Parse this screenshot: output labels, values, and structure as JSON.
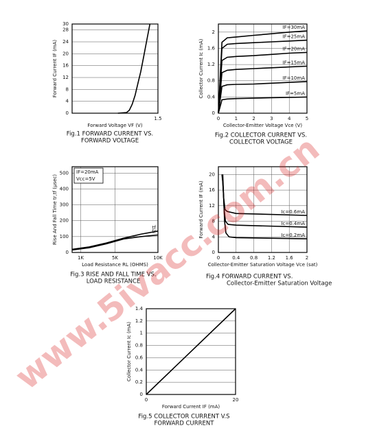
{
  "watermark": "www.5ivacc.com.cn",
  "chart_data": [
    {
      "type": "line",
      "y_label": "Forward Current IF (mA)",
      "x_label": "Forward Voltage VF (V)",
      "caption": [
        "Fig.1  FORWARD CURRENT VS.",
        "FORWARD VOLTAGE"
      ],
      "xlim": [
        0,
        1.5
      ],
      "xticks": [
        1.5
      ],
      "ylim": [
        0,
        30
      ],
      "yticks": [
        0,
        4,
        8,
        12,
        16,
        20,
        24,
        28,
        30
      ],
      "grid": true,
      "series": [
        {
          "color": "#000000",
          "x": [
            0.8,
            0.95,
            1.0,
            1.05,
            1.1,
            1.15,
            1.2,
            1.25,
            1.3,
            1.36
          ],
          "values": [
            0,
            0.2,
            1,
            3,
            6,
            10,
            14,
            19,
            24,
            30
          ]
        }
      ]
    },
    {
      "type": "line",
      "y_label": "Collector Current Ic (mA)",
      "x_label": "Collector-Emitter Voltage Vce (V)",
      "caption": [
        "Fig.2  COLLECTOR CURRENT VS.",
        "COLLECTOR VOLTAGE"
      ],
      "xlim": [
        0,
        5
      ],
      "xticks": [
        0,
        1,
        2,
        3,
        4,
        5
      ],
      "ylim": [
        0,
        2.2
      ],
      "yticks": [
        0,
        0.4,
        0.8,
        1.2,
        1.6,
        2.0
      ],
      "grid": true,
      "series": [
        {
          "name": "IF=30mA",
          "color": "#000000",
          "x": [
            0,
            0.2,
            0.5,
            1,
            2,
            3,
            4,
            5
          ],
          "values": [
            0,
            1.75,
            1.86,
            1.88,
            1.92,
            1.96,
            2.0,
            2.03
          ]
        },
        {
          "name": "IF=25mA",
          "color": "#000000",
          "x": [
            0,
            0.2,
            0.5,
            1,
            2,
            3,
            4,
            5
          ],
          "values": [
            0,
            1.6,
            1.7,
            1.72,
            1.74,
            1.76,
            1.78,
            1.8
          ]
        },
        {
          "name": "IF=20mA",
          "color": "#000000",
          "x": [
            0,
            0.2,
            0.5,
            1,
            2,
            3,
            4,
            5
          ],
          "values": [
            0,
            1.3,
            1.38,
            1.4,
            1.42,
            1.45,
            1.48,
            1.5
          ]
        },
        {
          "name": "IF=15mA",
          "color": "#000000",
          "x": [
            0,
            0.2,
            0.5,
            1,
            2,
            3,
            4,
            5
          ],
          "values": [
            0,
            1.0,
            1.06,
            1.08,
            1.1,
            1.12,
            1.14,
            1.16
          ]
        },
        {
          "name": "IF=10mA",
          "color": "#000000",
          "x": [
            0,
            0.2,
            0.5,
            1,
            2,
            3,
            4,
            5
          ],
          "values": [
            0,
            0.66,
            0.7,
            0.71,
            0.72,
            0.74,
            0.76,
            0.78
          ]
        },
        {
          "name": "IF=5mA",
          "color": "#000000",
          "x": [
            0,
            0.2,
            0.5,
            1,
            2,
            3,
            4,
            5
          ],
          "values": [
            0,
            0.33,
            0.35,
            0.36,
            0.37,
            0.38,
            0.39,
            0.4
          ]
        }
      ]
    },
    {
      "type": "line",
      "y_label": "Rise And Fall Time tr,tf (μsec)",
      "x_label": "Load Resistance RL (OHMS)",
      "caption": [
        "Fig.3  RISE AND FALL TIME VS.",
        "LOAD RESISTANCE"
      ],
      "annotations": [
        "IF=20mA",
        "Vcc=5V"
      ],
      "xlim": [
        0,
        10000
      ],
      "xticks": [
        {
          "value": 1000,
          "label": "1K"
        },
        {
          "value": 5000,
          "label": "5K"
        },
        {
          "value": 10000,
          "label": "10K"
        }
      ],
      "ylim": [
        0,
        540
      ],
      "yticks": [
        0,
        100,
        200,
        300,
        400,
        500
      ],
      "grid": true,
      "series": [
        {
          "name": "tf",
          "color": "#000000",
          "x": [
            0,
            2000,
            4000,
            6000,
            8000,
            10000
          ],
          "values": [
            20,
            35,
            60,
            90,
            115,
            135
          ]
        },
        {
          "name": "tr",
          "color": "#000000",
          "x": [
            0,
            2000,
            4000,
            6000,
            8000,
            10000
          ],
          "values": [
            15,
            30,
            55,
            85,
            100,
            110
          ]
        }
      ]
    },
    {
      "type": "line",
      "y_label": "Forward Current IF (mA)",
      "x_label": "Collector-Emitter Saturation Voltage Vce (sat)",
      "caption": [
        "Fig.4  FORWARD CURRENT VS.",
        "Collector-Emitter Saturation Voltage"
      ],
      "xlim": [
        0,
        2.0
      ],
      "xticks": [
        0,
        0.4,
        0.8,
        1.2,
        1.6,
        2.0
      ],
      "ylim": [
        0,
        22
      ],
      "yticks": [
        0,
        4,
        8,
        12,
        16,
        20
      ],
      "grid": true,
      "series": [
        {
          "name": "Ic=0.6mA",
          "color": "#000000",
          "x": [
            0.08,
            0.1,
            0.12,
            0.15,
            0.2,
            0.4,
            2.0
          ],
          "values": [
            20,
            18,
            14,
            11,
            10.5,
            10,
            9.5
          ]
        },
        {
          "name": "Ic=0.4mA",
          "color": "#000000",
          "x": [
            0.09,
            0.11,
            0.13,
            0.16,
            0.22,
            0.4,
            2.0
          ],
          "values": [
            20,
            16,
            11,
            8,
            7.2,
            7,
            6.5
          ]
        },
        {
          "name": "Ic=0.2mA",
          "color": "#000000",
          "x": [
            0.1,
            0.12,
            0.14,
            0.17,
            0.24,
            0.4,
            2.0
          ],
          "values": [
            20,
            14,
            8,
            5,
            4,
            3.8,
            3.5
          ]
        }
      ]
    },
    {
      "type": "line",
      "y_label": "Collector Current Ic (mA)",
      "x_label": "Forward Current IF (mA)",
      "caption": [
        "Fig.5  COLLECTOR CURRENT V.S",
        "FORWARD CURRENT"
      ],
      "xlim": [
        0,
        20
      ],
      "xticks": [
        0,
        20
      ],
      "ylim": [
        0,
        1.4
      ],
      "yticks": [
        0,
        0.2,
        0.4,
        0.6,
        0.8,
        1.0,
        1.2,
        1.4
      ],
      "grid": true,
      "series": [
        {
          "color": "#000000",
          "x": [
            0,
            20
          ],
          "values": [
            0,
            1.4
          ]
        }
      ]
    }
  ]
}
